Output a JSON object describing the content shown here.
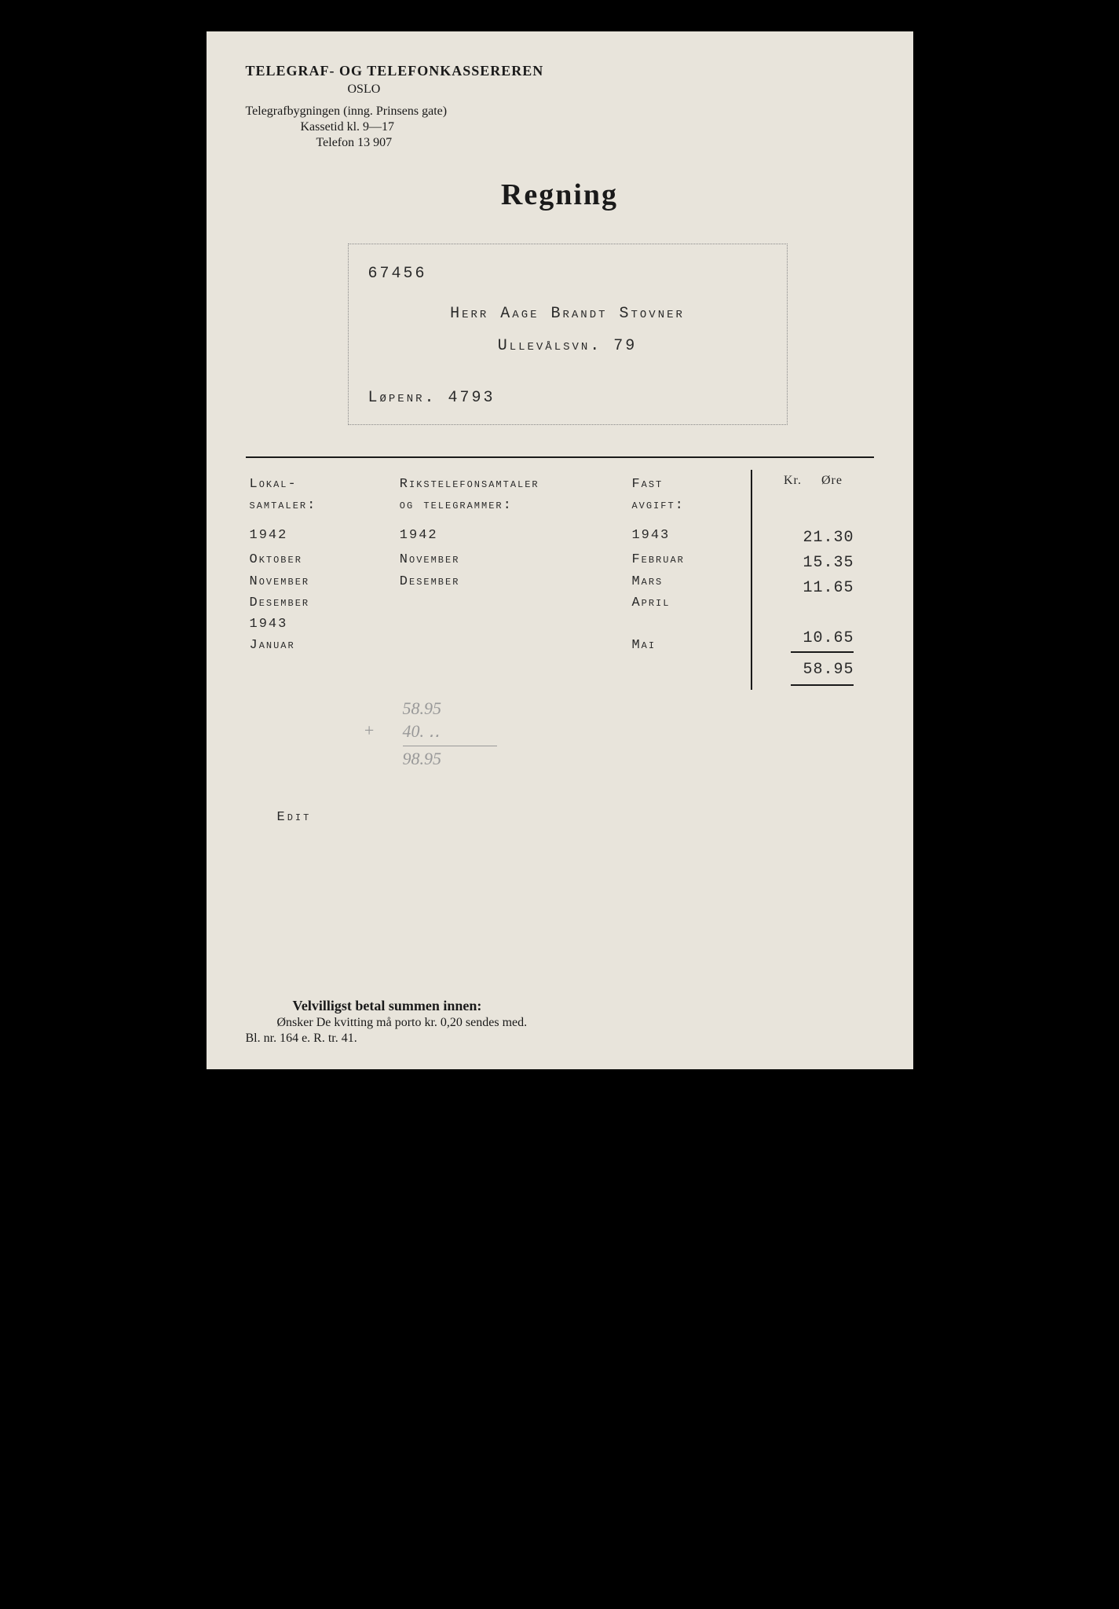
{
  "header": {
    "org": "TELEGRAF- OG TELEFONKASSEREREN",
    "city": "OSLO",
    "address": "Telegrafbygningen (inng. Prinsens gate)",
    "hours": "Kassetid kl. 9—17",
    "phone": "Telefon 13 907"
  },
  "title": "Regning",
  "address_box": {
    "account": "67456",
    "recipient": "Herr Aage Brandt Stovner",
    "street": "Ullevålsvn. 79",
    "lopennr_label": "Løpenr.",
    "lopennr": "4793"
  },
  "columns": {
    "local_header1": "Lokal-",
    "local_header2": "samtaler:",
    "riks_header1": "Rikstelefonsamtaler",
    "riks_header2": "og telegrammer:",
    "fast_header1": "Fast",
    "fast_header2": "avgift:",
    "kr": "Kr.",
    "ore": "Øre"
  },
  "local": {
    "year1": "1942",
    "m1": "Oktober",
    "m2": "November",
    "m3": "Desember",
    "year2": "1943",
    "m4": "Januar"
  },
  "riks": {
    "year1": "1942",
    "m1": "November",
    "m2": "Desember"
  },
  "fast": {
    "year1": "1943",
    "m1": "Februar",
    "m2": "Mars",
    "m3": "April",
    "m4": "Mai"
  },
  "amounts": {
    "a1": "21.30",
    "a2": "15.35",
    "a3": "11.65",
    "a4": "10.65",
    "total": "58.95"
  },
  "handwritten": {
    "l1": "58.95",
    "l2": "40. ‥",
    "plus": "+",
    "l3": "98.95"
  },
  "edit": "Edit",
  "footer": {
    "line1": "Velvilligst betal summen innen:",
    "line2": "Ønsker De kvitting må porto kr. 0,20 sendes med.",
    "line3": "Bl. nr. 164 e. R. tr. 41."
  },
  "style": {
    "page_bg": "#e8e4db",
    "outer_bg": "#000000",
    "text_color": "#1a1a1a",
    "typed_color": "#2a2a2a",
    "hw_color": "#999999"
  }
}
